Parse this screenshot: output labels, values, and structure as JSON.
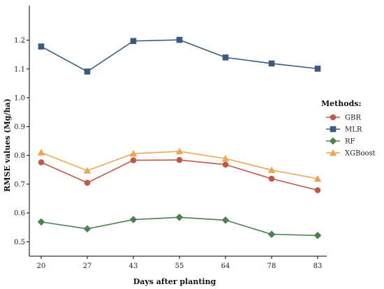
{
  "chart_data": {
    "type": "line",
    "xlabel": "Days after planting",
    "ylabel": "RMSE values (Mg/ha)",
    "categories": [
      "20",
      "27",
      "43",
      "55",
      "64",
      "78",
      "83"
    ],
    "ylim": [
      0.45,
      1.32
    ],
    "yticks": [
      "0.5",
      "0.6",
      "0.7",
      "0.8",
      "0.9",
      "1.0",
      "1.1",
      "1.2"
    ],
    "grid": false,
    "legend": {
      "title": "Methods:",
      "position": "right"
    },
    "series": [
      {
        "name": "GBR",
        "color": "#c0584a",
        "marker": "circle",
        "values": [
          0.776,
          0.705,
          0.783,
          0.784,
          0.768,
          0.719,
          0.679
        ]
      },
      {
        "name": "MLR",
        "color": "#3b5b7e",
        "marker": "square",
        "values": [
          1.178,
          1.091,
          1.197,
          1.201,
          1.14,
          1.119,
          1.101
        ]
      },
      {
        "name": "RF",
        "color": "#4d8150",
        "marker": "diamond",
        "values": [
          0.569,
          0.545,
          0.577,
          0.585,
          0.575,
          0.526,
          0.522
        ]
      },
      {
        "name": "XGBoost",
        "color": "#e8a955",
        "marker": "triangle",
        "values": [
          0.81,
          0.747,
          0.806,
          0.814,
          0.789,
          0.749,
          0.719
        ]
      }
    ]
  }
}
